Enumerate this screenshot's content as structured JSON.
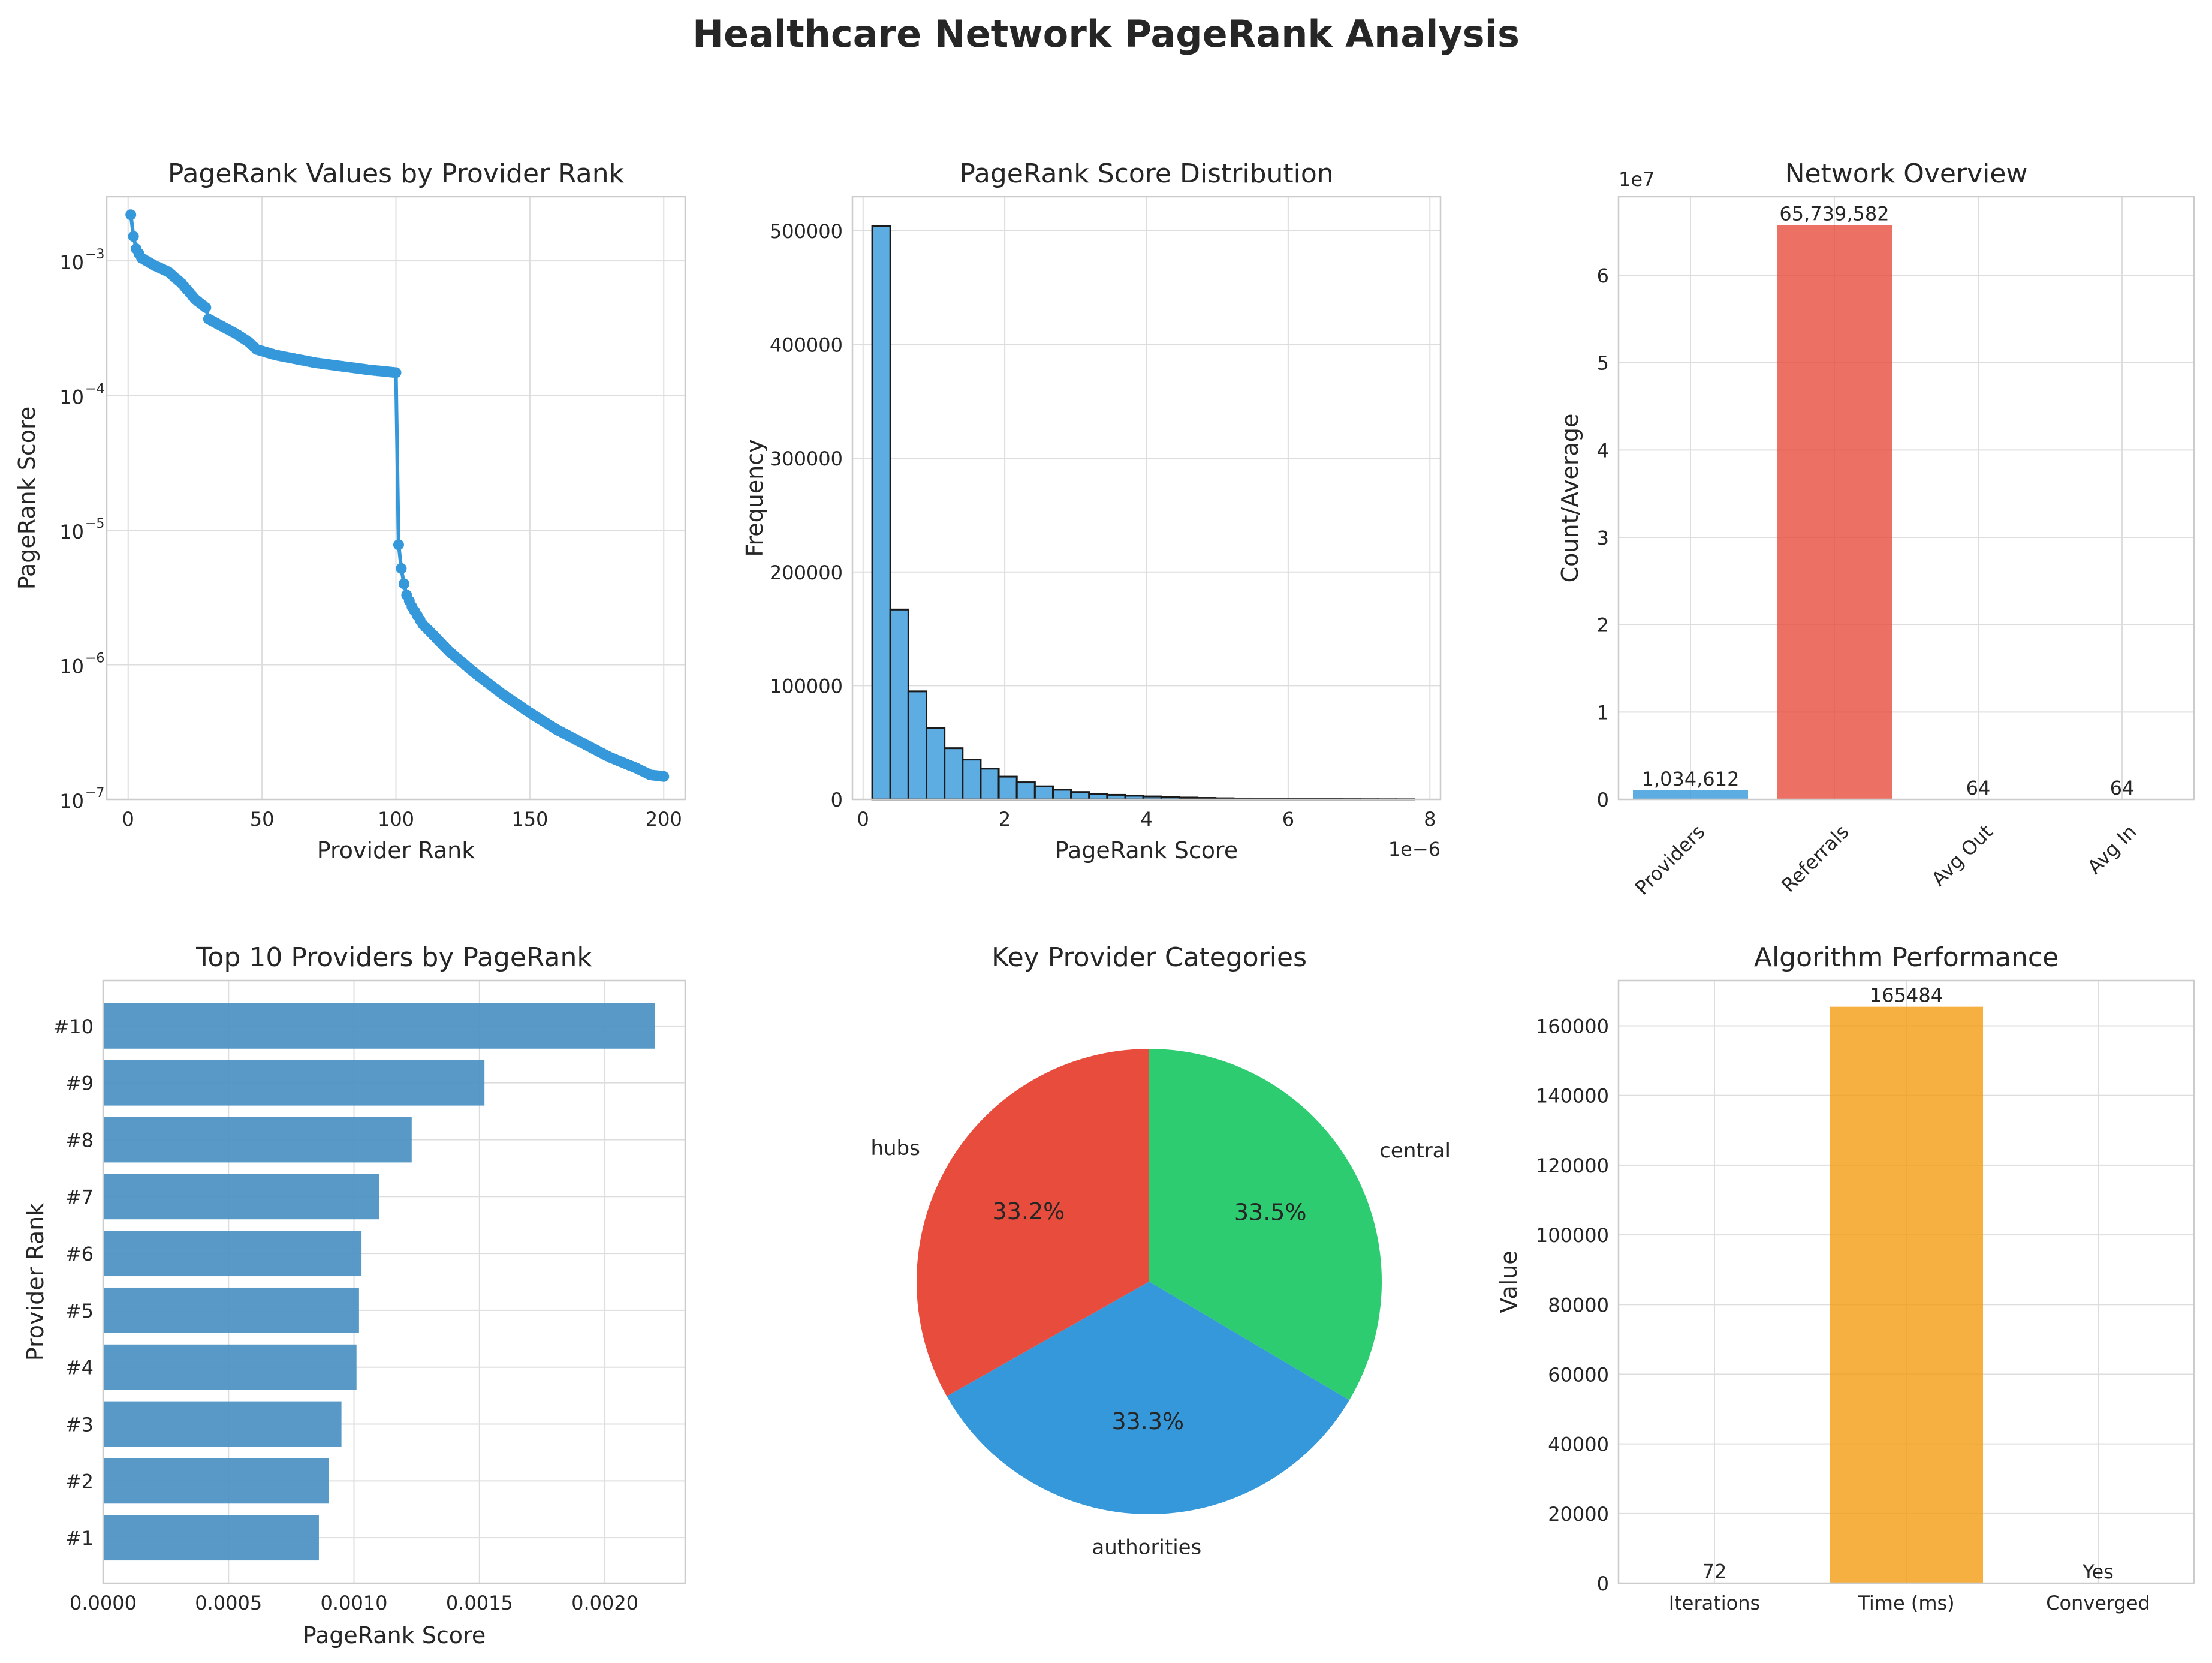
{
  "title": "Healthcare Network PageRank Analysis",
  "colors": {
    "blue": "#3498db",
    "steel": "#4a90c2",
    "red": "#e74c3c",
    "green": "#2ecc71",
    "orange": "#f39c12",
    "hist": "#5dade2"
  },
  "chart_data": [
    {
      "type": "line",
      "title": "PageRank Values by Provider Rank",
      "xlabel": "Provider Rank",
      "ylabel": "PageRank Score",
      "yscale": "log",
      "xlim": [
        -8,
        208
      ],
      "ylim": [
        1e-07,
        0.003
      ],
      "xticks": [
        "0",
        "50",
        "100",
        "150",
        "200"
      ],
      "yticks": [
        "10",
        "10",
        "10",
        "10",
        "10"
      ],
      "ytick_exponents": [
        "−7",
        "−6",
        "−5",
        "−4",
        "−3"
      ],
      "segments": [
        {
          "x_range": [
            1,
            100
          ],
          "points": [
            [
              1,
              0.0022
            ],
            [
              2,
              0.00152
            ],
            [
              3,
              0.00123
            ],
            [
              5,
              0.00105
            ],
            [
              10,
              0.00092
            ],
            [
              15,
              0.00083
            ],
            [
              20,
              0.00068
            ],
            [
              25,
              0.00052
            ],
            [
              29,
              0.00045
            ],
            [
              30,
              0.00037
            ],
            [
              40,
              0.00029
            ],
            [
              45,
              0.00025
            ],
            [
              48,
              0.00022
            ],
            [
              55,
              0.0002
            ],
            [
              70,
              0.000175
            ],
            [
              90,
              0.000155
            ],
            [
              100,
              0.000148
            ]
          ]
        },
        {
          "x_range": [
            101,
            200
          ],
          "points": [
            [
              101,
              7.8e-06
            ],
            [
              102,
              5.2e-06
            ],
            [
              103,
              4e-06
            ],
            [
              104,
              3.3e-06
            ],
            [
              106,
              2.7e-06
            ],
            [
              110,
              2e-06
            ],
            [
              120,
              1.25e-06
            ],
            [
              130,
              8.5e-07
            ],
            [
              140,
              6e-07
            ],
            [
              150,
              4.4e-07
            ],
            [
              160,
              3.3e-07
            ],
            [
              170,
              2.6e-07
            ],
            [
              180,
              2.05e-07
            ],
            [
              190,
              1.7e-07
            ],
            [
              195,
              1.52e-07
            ],
            [
              200,
              1.48e-07
            ]
          ]
        }
      ]
    },
    {
      "type": "bar",
      "title": "PageRank Score Distribution",
      "xlabel": "PageRank Score",
      "ylabel": "Frequency",
      "offset_text": "1e−6",
      "xlim": [
        -0.15,
        8.15
      ],
      "ylim": [
        0,
        530000
      ],
      "xticks": [
        "0",
        "2",
        "4",
        "6",
        "8"
      ],
      "yticks": [
        "0",
        "100000",
        "200000",
        "300000",
        "400000",
        "500000"
      ],
      "bin_start": 0.13,
      "bin_width": 0.255,
      "values": [
        504000,
        167000,
        95000,
        63000,
        45000,
        35000,
        27000,
        20000,
        15000,
        11500,
        8500,
        6500,
        5000,
        4000,
        3200,
        2600,
        2000,
        1600,
        1300,
        1000,
        800,
        650,
        520,
        420,
        340,
        280,
        230,
        190,
        150,
        120
      ]
    },
    {
      "type": "bar",
      "title": "Network Overview",
      "ylabel": "Count/Average",
      "offset_text": "1e7",
      "ylim": [
        0,
        69000000.0
      ],
      "yticks": [
        "0",
        "1",
        "2",
        "3",
        "4",
        "5",
        "6"
      ],
      "categories": [
        "Providers",
        "Referrals",
        "Avg Out",
        "Avg In"
      ],
      "values": [
        1034612,
        65739582,
        64,
        64
      ],
      "value_labels": [
        "1,034,612",
        "65,739,582",
        "64",
        "64"
      ]
    },
    {
      "type": "bar",
      "orientation": "horizontal",
      "title": "Top 10 Providers by PageRank",
      "xlabel": "PageRank Score",
      "ylabel": "Provider Rank",
      "xlim": [
        0,
        0.00232
      ],
      "xticks": [
        "0.0000",
        "0.0005",
        "0.0010",
        "0.0015",
        "0.0020"
      ],
      "categories": [
        "#1",
        "#2",
        "#3",
        "#4",
        "#5",
        "#6",
        "#7",
        "#8",
        "#9",
        "#10"
      ],
      "values": [
        0.00086,
        0.0009,
        0.00095,
        0.00101,
        0.00102,
        0.00103,
        0.0011,
        0.00123,
        0.00152,
        0.0022
      ]
    },
    {
      "type": "pie",
      "title": "Key Provider Categories",
      "categories": [
        "hubs",
        "authorities",
        "central"
      ],
      "values": [
        33.2,
        33.3,
        33.5
      ],
      "pct_labels": [
        "33.2%",
        "33.3%",
        "33.5%"
      ]
    },
    {
      "type": "bar",
      "title": "Algorithm Performance",
      "ylabel": "Value",
      "ylim": [
        0,
        173000
      ],
      "yticks": [
        "0",
        "20000",
        "40000",
        "60000",
        "80000",
        "100000",
        "120000",
        "140000",
        "160000"
      ],
      "categories": [
        "Iterations",
        "Time (ms)",
        "Converged"
      ],
      "values": [
        72,
        165484,
        1
      ],
      "value_labels": [
        "72",
        "165484",
        "Yes"
      ]
    }
  ]
}
